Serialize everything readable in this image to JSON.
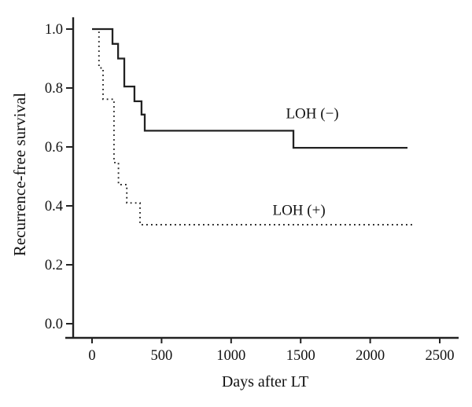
{
  "chart_data": {
    "type": "line",
    "subtype": "kaplan_meier_step",
    "title": "",
    "xlabel": "Days after LT",
    "ylabel": "Recurrence-free survival",
    "xlim": [
      0,
      2500
    ],
    "ylim": [
      0.0,
      1.0
    ],
    "x_ticks": [
      "0",
      "500",
      "1000",
      "1500",
      "2000",
      "2500"
    ],
    "y_ticks": [
      "0.0",
      "0.2",
      "0.4",
      "0.6",
      "0.8",
      "1.0"
    ],
    "grid": false,
    "legend": "inline annotations beside curves",
    "axis_color": "#222222",
    "series": [
      {
        "name": "LOH (−)",
        "label": "LOH (−)",
        "line_style": "solid",
        "color": "#222222",
        "label_day": 1584,
        "label_value": 0.715,
        "points_day_survival": [
          [
            0,
            1.0
          ],
          [
            147,
            1.0
          ],
          [
            147,
            0.95
          ],
          [
            187,
            0.95
          ],
          [
            187,
            0.9
          ],
          [
            232,
            0.9
          ],
          [
            232,
            0.805
          ],
          [
            305,
            0.805
          ],
          [
            305,
            0.755
          ],
          [
            356,
            0.755
          ],
          [
            356,
            0.71
          ],
          [
            379,
            0.71
          ],
          [
            379,
            0.655
          ],
          [
            1448,
            0.655
          ],
          [
            1448,
            0.597
          ],
          [
            2268,
            0.597
          ]
        ]
      },
      {
        "name": "LOH (+)",
        "label": "LOH (+)",
        "line_style": "dotted",
        "color": "#222222",
        "label_day": 1488,
        "label_value": 0.387,
        "points_day_survival": [
          [
            0,
            1.0
          ],
          [
            50,
            1.0
          ],
          [
            50,
            0.868
          ],
          [
            79,
            0.868
          ],
          [
            79,
            0.762
          ],
          [
            158,
            0.762
          ],
          [
            158,
            0.547
          ],
          [
            190,
            0.547
          ],
          [
            190,
            0.472
          ],
          [
            250,
            0.472
          ],
          [
            250,
            0.41
          ],
          [
            345,
            0.41
          ],
          [
            345,
            0.336
          ],
          [
            2320,
            0.336
          ]
        ]
      }
    ]
  }
}
